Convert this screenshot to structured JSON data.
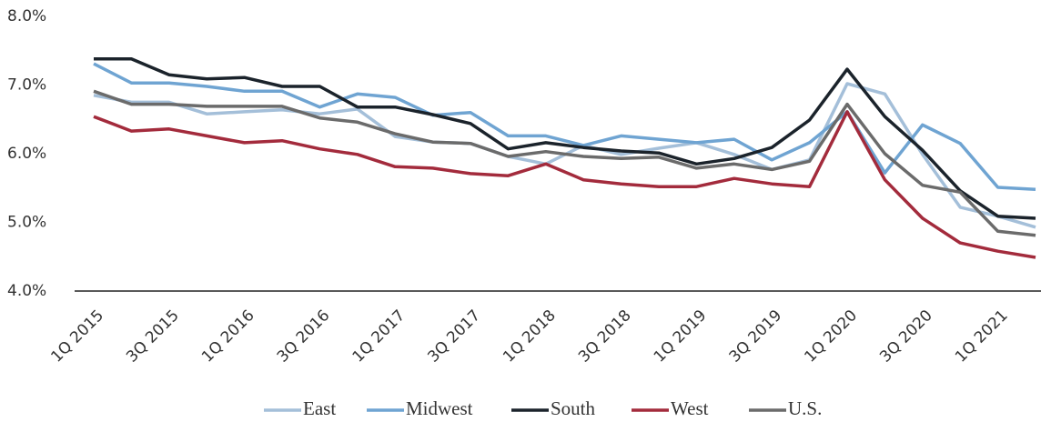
{
  "chart_data": {
    "type": "line",
    "categories": [
      "1Q 2015",
      null,
      "3Q 2015",
      null,
      "1Q 2016",
      null,
      "3Q 2016",
      null,
      "1Q 2017",
      null,
      "3Q 2017",
      null,
      "1Q 2018",
      null,
      "3Q 2018",
      null,
      "1Q 2019",
      null,
      "3Q 2019",
      null,
      "1Q 2020",
      null,
      "3Q 2020",
      null,
      "1Q 2021",
      null
    ],
    "series": [
      {
        "name": "East",
        "color": "#a4bfd9",
        "values": [
          6.85,
          6.75,
          6.75,
          6.58,
          6.61,
          6.64,
          6.58,
          6.65,
          6.25,
          6.17,
          6.15,
          5.96,
          5.85,
          6.12,
          5.99,
          6.08,
          6.16,
          5.99,
          5.77,
          5.91,
          7.02,
          6.87,
          5.99,
          5.22,
          5.09,
          4.93
        ]
      },
      {
        "name": "Midwest",
        "color": "#6fa4d2",
        "values": [
          7.31,
          7.03,
          7.03,
          6.98,
          6.91,
          6.91,
          6.68,
          6.87,
          6.82,
          6.56,
          6.6,
          6.26,
          6.26,
          6.12,
          6.26,
          6.21,
          6.16,
          6.21,
          5.91,
          6.16,
          6.61,
          5.72,
          6.42,
          6.15,
          5.51,
          5.48
        ]
      },
      {
        "name": "South",
        "color": "#1b232b",
        "values": [
          7.38,
          7.38,
          7.15,
          7.09,
          7.11,
          6.98,
          6.98,
          6.68,
          6.68,
          6.57,
          6.44,
          6.07,
          6.16,
          6.09,
          6.04,
          6.01,
          5.85,
          5.93,
          6.09,
          6.49,
          7.23,
          6.54,
          6.05,
          5.46,
          5.09,
          5.06
        ]
      },
      {
        "name": "West",
        "color": "#a32b3c",
        "values": [
          6.54,
          6.33,
          6.36,
          6.26,
          6.16,
          6.19,
          6.07,
          5.99,
          5.81,
          5.79,
          5.71,
          5.68,
          5.85,
          5.62,
          5.56,
          5.52,
          5.52,
          5.64,
          5.56,
          5.52,
          6.61,
          5.62,
          5.06,
          4.7,
          4.58,
          4.49
        ]
      },
      {
        "name": "U.S.",
        "color": "#6b6b6b",
        "values": [
          6.91,
          6.72,
          6.72,
          6.69,
          6.69,
          6.69,
          6.52,
          6.46,
          6.29,
          6.17,
          6.15,
          5.96,
          6.03,
          5.96,
          5.93,
          5.95,
          5.79,
          5.85,
          5.77,
          5.89,
          6.72,
          6.0,
          5.54,
          5.44,
          4.87,
          4.81
        ]
      }
    ],
    "ylim": [
      4,
      8
    ],
    "yticks": [
      {
        "value": 4,
        "label": "4.0%"
      },
      {
        "value": 5,
        "label": "5.0%"
      },
      {
        "value": 6,
        "label": "6.0%"
      },
      {
        "value": 7,
        "label": "7.0%"
      },
      {
        "value": 8,
        "label": "8.0%"
      }
    ],
    "grid": false,
    "legend": "bottom"
  }
}
